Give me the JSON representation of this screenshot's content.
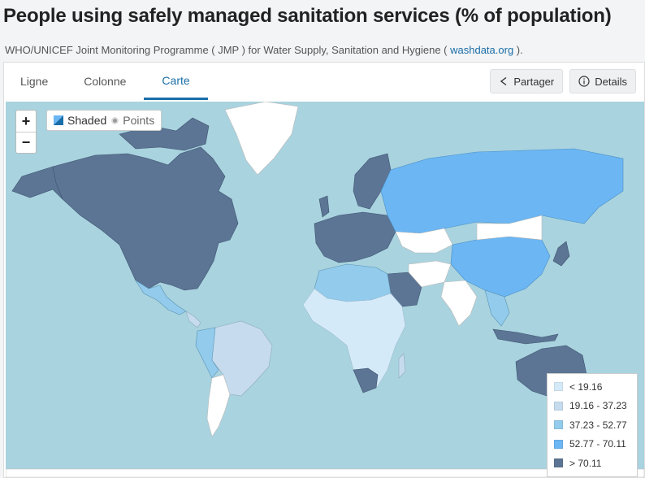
{
  "header": {
    "title": "People using safely managed sanitation services (% of population)",
    "source_prefix": "WHO/UNICEF Joint Monitoring Programme ( JMP ) for Water Supply, Sanitation and Hygiene ( ",
    "source_link": "washdata.org",
    "source_suffix": " )."
  },
  "tabs": [
    {
      "label": "Ligne",
      "active": false
    },
    {
      "label": "Colonne",
      "active": false
    },
    {
      "label": "Carte",
      "active": true
    }
  ],
  "actions": {
    "share_label": "Partager",
    "details_label": "Details"
  },
  "map_controls": {
    "zoom_in": "+",
    "zoom_out": "−",
    "shaded_label": "Shaded",
    "points_label": "Points",
    "mode": "shaded"
  },
  "legend": {
    "items": [
      {
        "label": "< 19.16",
        "color": "#d5eaf8"
      },
      {
        "label": "19.16 - 37.23",
        "color": "#c6dcee"
      },
      {
        "label": "37.23 - 52.77",
        "color": "#93cbec"
      },
      {
        "label": "52.77 - 70.11",
        "color": "#6bb6f3"
      },
      {
        "label": "> 70.11",
        "color": "#5c7594"
      }
    ]
  },
  "colors": {
    "ocean": "#a9d3df",
    "no_data": "#ffffff",
    "accent": "#1a6ea8"
  }
}
